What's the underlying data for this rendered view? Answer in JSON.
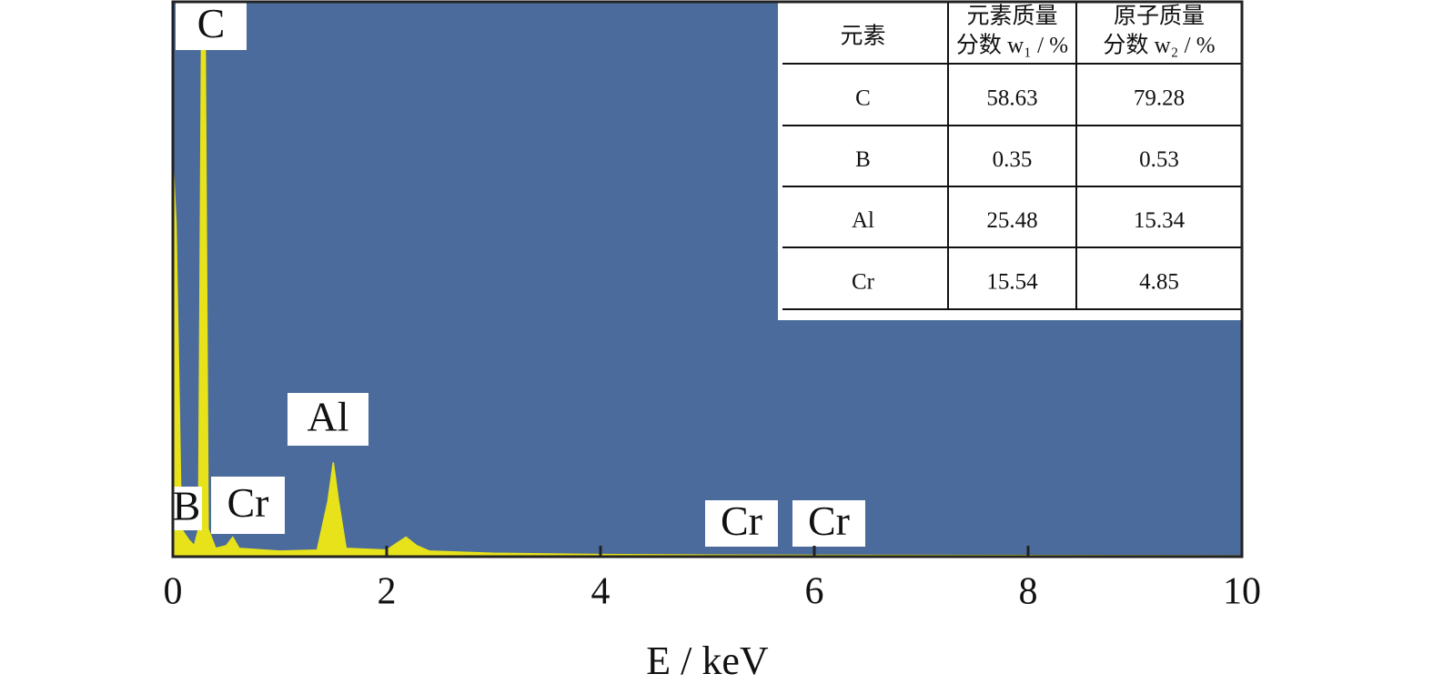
{
  "chart_data": {
    "type": "area",
    "xlabel": "E / keV",
    "xlim": [
      0,
      10
    ],
    "xticks": [
      0,
      2,
      4,
      6,
      8,
      10
    ],
    "ylim": [
      0,
      100
    ],
    "color": "#e8e21a",
    "background": "#4a6b9b",
    "x": [
      0,
      0.03,
      0.08,
      0.15,
      0.2,
      0.24,
      0.27,
      0.3,
      0.33,
      0.4,
      0.5,
      0.56,
      0.62,
      1.0,
      1.35,
      1.45,
      1.5,
      1.55,
      1.62,
      2.0,
      2.1,
      2.18,
      2.28,
      2.4,
      3,
      4,
      5,
      6,
      8,
      10
    ],
    "values": [
      72,
      60,
      5,
      3,
      2,
      5,
      100,
      100,
      5,
      1.5,
      2,
      3.5,
      1.5,
      1,
      1.2,
      10,
      17,
      10,
      1.5,
      1.2,
      2.5,
      3.5,
      2,
      1,
      0.6,
      0.4,
      0.3,
      0.25,
      0.2,
      0.15
    ],
    "annotations": [
      {
        "text": "C",
        "x": 0.28
      },
      {
        "text": "B",
        "x": 0.18
      },
      {
        "text": "Cr",
        "x": 0.57
      },
      {
        "text": "Al",
        "x": 1.49
      },
      {
        "text": "Cr",
        "x": 5.41
      },
      {
        "text": "Cr",
        "x": 5.95
      }
    ],
    "table": {
      "header": [
        [
          "元素"
        ],
        [
          "元素质量",
          "分数 w₁ / %"
        ],
        [
          "原子质量",
          "分数 w₂ / %"
        ]
      ],
      "rows": [
        [
          "C",
          "58.63",
          "79.28"
        ],
        [
          "B",
          "0.35",
          "0.53"
        ],
        [
          "Al",
          "25.48",
          "15.34"
        ],
        [
          "Cr",
          "15.54",
          "4.85"
        ]
      ]
    }
  }
}
